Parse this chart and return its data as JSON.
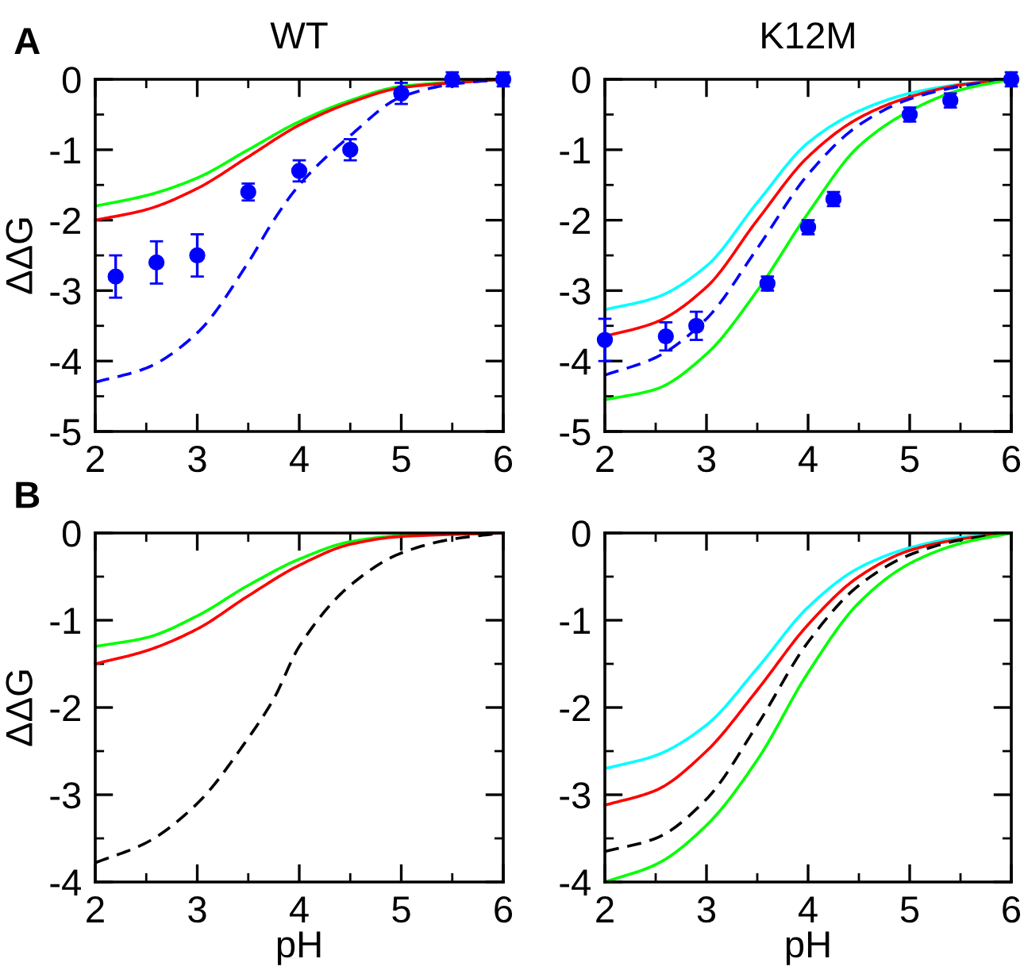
{
  "chart_data": [
    {
      "type": "line",
      "title": "WT",
      "ylabel": "ΔΔG",
      "annotations": [
        "A"
      ],
      "xlim": [
        2,
        6
      ],
      "ylim": [
        -5,
        0
      ],
      "xticks": [
        2,
        {
          "value": 2.5,
          "label": null
        },
        3,
        {
          "value": 3.5,
          "label": null
        },
        4,
        {
          "value": 4.5,
          "label": null
        },
        5,
        {
          "value": 5.5,
          "label": null
        },
        6
      ],
      "yticks": [
        -5,
        {
          "value": -4.5,
          "label": null
        },
        -4,
        {
          "value": -3.5,
          "label": null
        },
        -3,
        {
          "value": -2.5,
          "label": null
        },
        -2,
        {
          "value": -1.5,
          "label": null
        },
        -1,
        {
          "value": -0.5,
          "label": null
        },
        0
      ],
      "grid": false,
      "legend": false,
      "series": [
        {
          "color": "#00ff00",
          "line_style": "solid",
          "x": [
            2,
            2.5,
            3,
            3.5,
            4,
            4.5,
            5,
            6
          ],
          "values": [
            -1.8,
            -1.65,
            -1.4,
            -1.0,
            -0.6,
            -0.3,
            -0.1,
            0
          ]
        },
        {
          "color": "#ff0000",
          "line_style": "solid",
          "x": [
            2,
            2.5,
            3,
            3.5,
            4,
            4.5,
            5,
            6
          ],
          "values": [
            -2.0,
            -1.85,
            -1.55,
            -1.1,
            -0.65,
            -0.33,
            -0.12,
            0
          ]
        },
        {
          "color": "#0000ff",
          "line_style": "dashed",
          "x": [
            2,
            2.5,
            3,
            3.5,
            3.75,
            4,
            4.5,
            5,
            5.5,
            6
          ],
          "values": [
            -4.3,
            -4.1,
            -3.6,
            -2.6,
            -2.0,
            -1.5,
            -0.8,
            -0.25,
            -0.07,
            0
          ]
        },
        {
          "type": "scatter",
          "marker": "circle",
          "color": "#0000ff",
          "x": [
            2.2,
            2.6,
            3.0,
            3.5,
            4.0,
            4.5,
            5.0,
            5.5,
            6.0
          ],
          "values": [
            -2.8,
            -2.6,
            -2.5,
            -1.6,
            -1.3,
            -1.0,
            -0.2,
            0,
            0
          ],
          "errors": [
            0.3,
            0.3,
            0.3,
            0.12,
            0.15,
            0.15,
            0.15,
            0.1,
            0.1
          ]
        }
      ]
    },
    {
      "type": "line",
      "title": "K12M",
      "xlim": [
        2,
        6
      ],
      "ylim": [
        -5,
        0
      ],
      "xticks": [
        2,
        {
          "value": 2.5,
          "label": null
        },
        3,
        {
          "value": 3.5,
          "label": null
        },
        4,
        {
          "value": 4.5,
          "label": null
        },
        5,
        {
          "value": 5.5,
          "label": null
        },
        6
      ],
      "yticks": [
        -5,
        {
          "value": -4.5,
          "label": null
        },
        -4,
        {
          "value": -3.5,
          "label": null
        },
        -3,
        {
          "value": -2.5,
          "label": null
        },
        -2,
        {
          "value": -1.5,
          "label": null
        },
        -1,
        {
          "value": -0.5,
          "label": null
        },
        0
      ],
      "grid": false,
      "legend": false,
      "series": [
        {
          "color": "#00ffff",
          "line_style": "solid",
          "x": [
            2,
            2.5,
            3,
            3.5,
            4,
            4.5,
            5,
            5.5,
            6
          ],
          "values": [
            -3.27,
            -3.1,
            -2.65,
            -1.75,
            -0.9,
            -0.45,
            -0.2,
            -0.07,
            0
          ]
        },
        {
          "color": "#ff0000",
          "line_style": "solid",
          "x": [
            2,
            2.5,
            3,
            3.5,
            4,
            4.5,
            5,
            5.5,
            6
          ],
          "values": [
            -3.65,
            -3.45,
            -2.95,
            -2.0,
            -1.1,
            -0.55,
            -0.25,
            -0.08,
            0
          ]
        },
        {
          "color": "#0000ff",
          "line_style": "dashed",
          "x": [
            2,
            2.5,
            3,
            3.5,
            4,
            4.5,
            5,
            5.5,
            6
          ],
          "values": [
            -4.2,
            -3.95,
            -3.4,
            -2.4,
            -1.35,
            -0.65,
            -0.28,
            -0.1,
            0
          ]
        },
        {
          "color": "#00ff00",
          "line_style": "solid",
          "x": [
            2,
            2.5,
            3,
            3.5,
            4,
            4.5,
            5,
            5.5,
            6
          ],
          "values": [
            -4.55,
            -4.4,
            -3.9,
            -3.0,
            -1.9,
            -0.95,
            -0.45,
            -0.15,
            0
          ]
        },
        {
          "type": "scatter",
          "marker": "circle",
          "color": "#0000ff",
          "x": [
            2.0,
            2.6,
            2.9,
            3.6,
            4.0,
            4.25,
            5.0,
            5.4,
            6.0
          ],
          "values": [
            -3.7,
            -3.65,
            -3.5,
            -2.9,
            -2.1,
            -1.7,
            -0.5,
            -0.3,
            0
          ],
          "errors": [
            0.3,
            0.2,
            0.2,
            0.1,
            0.1,
            0.1,
            0.1,
            0.1,
            0.1
          ]
        }
      ]
    },
    {
      "type": "line",
      "xlabel": "pH",
      "ylabel": "ΔΔG",
      "annotations": [
        "B"
      ],
      "xlim": [
        2,
        6
      ],
      "ylim": [
        -4,
        0
      ],
      "xticks": [
        2,
        {
          "value": 2.5,
          "label": null
        },
        3,
        {
          "value": 3.5,
          "label": null
        },
        4,
        {
          "value": 4.5,
          "label": null
        },
        5,
        {
          "value": 5.5,
          "label": null
        },
        6
      ],
      "yticks": [
        -4,
        {
          "value": -3.5,
          "label": null
        },
        -3,
        {
          "value": -2.5,
          "label": null
        },
        -2,
        {
          "value": -1.5,
          "label": null
        },
        -1,
        {
          "value": -0.5,
          "label": null
        },
        0
      ],
      "grid": false,
      "legend": false,
      "series": [
        {
          "color": "#00ff00",
          "line_style": "solid",
          "x": [
            2,
            2.5,
            3,
            3.5,
            4,
            4.5,
            5,
            6
          ],
          "values": [
            -1.3,
            -1.2,
            -0.95,
            -0.6,
            -0.3,
            -0.1,
            -0.03,
            0
          ]
        },
        {
          "color": "#ff0000",
          "line_style": "solid",
          "x": [
            2,
            2.5,
            3,
            3.5,
            4,
            4.5,
            5,
            6
          ],
          "values": [
            -1.5,
            -1.35,
            -1.1,
            -0.72,
            -0.37,
            -0.13,
            -0.04,
            0
          ]
        },
        {
          "color": "#000000",
          "line_style": "dashed",
          "x": [
            2,
            2.5,
            3,
            3.5,
            3.75,
            4,
            4.5,
            5,
            5.5,
            6
          ],
          "values": [
            -3.78,
            -3.55,
            -3.1,
            -2.35,
            -1.9,
            -1.3,
            -0.6,
            -0.23,
            -0.07,
            0
          ]
        }
      ]
    },
    {
      "type": "line",
      "xlabel": "pH",
      "xlim": [
        2,
        6
      ],
      "ylim": [
        -4,
        0
      ],
      "xticks": [
        2,
        {
          "value": 2.5,
          "label": null
        },
        3,
        {
          "value": 3.5,
          "label": null
        },
        4,
        {
          "value": 4.5,
          "label": null
        },
        5,
        {
          "value": 5.5,
          "label": null
        },
        6
      ],
      "yticks": [
        -4,
        {
          "value": -3.5,
          "label": null
        },
        -3,
        {
          "value": -2.5,
          "label": null
        },
        -2,
        {
          "value": -1.5,
          "label": null
        },
        -1,
        {
          "value": -0.5,
          "label": null
        },
        0
      ],
      "grid": false,
      "legend": false,
      "series": [
        {
          "color": "#00ffff",
          "line_style": "solid",
          "x": [
            2,
            2.5,
            3,
            3.5,
            4,
            4.5,
            5,
            5.5,
            6
          ],
          "values": [
            -2.7,
            -2.55,
            -2.2,
            -1.55,
            -0.85,
            -0.4,
            -0.17,
            -0.05,
            0
          ]
        },
        {
          "color": "#ff0000",
          "line_style": "solid",
          "x": [
            2,
            2.5,
            3,
            3.5,
            4,
            4.5,
            5,
            5.5,
            6
          ],
          "values": [
            -3.12,
            -2.95,
            -2.5,
            -1.8,
            -1.05,
            -0.5,
            -0.2,
            -0.07,
            0
          ]
        },
        {
          "color": "#000000",
          "line_style": "dashed",
          "x": [
            2,
            2.5,
            3,
            3.5,
            4,
            4.5,
            5,
            5.5,
            6
          ],
          "values": [
            -3.65,
            -3.5,
            -3.05,
            -2.2,
            -1.25,
            -0.6,
            -0.25,
            -0.08,
            0
          ]
        },
        {
          "color": "#00ff00",
          "line_style": "solid",
          "x": [
            2,
            2.5,
            3,
            3.5,
            4,
            4.5,
            5,
            5.5,
            6
          ],
          "values": [
            -4.0,
            -3.8,
            -3.35,
            -2.6,
            -1.6,
            -0.8,
            -0.35,
            -0.12,
            0
          ]
        }
      ]
    }
  ]
}
